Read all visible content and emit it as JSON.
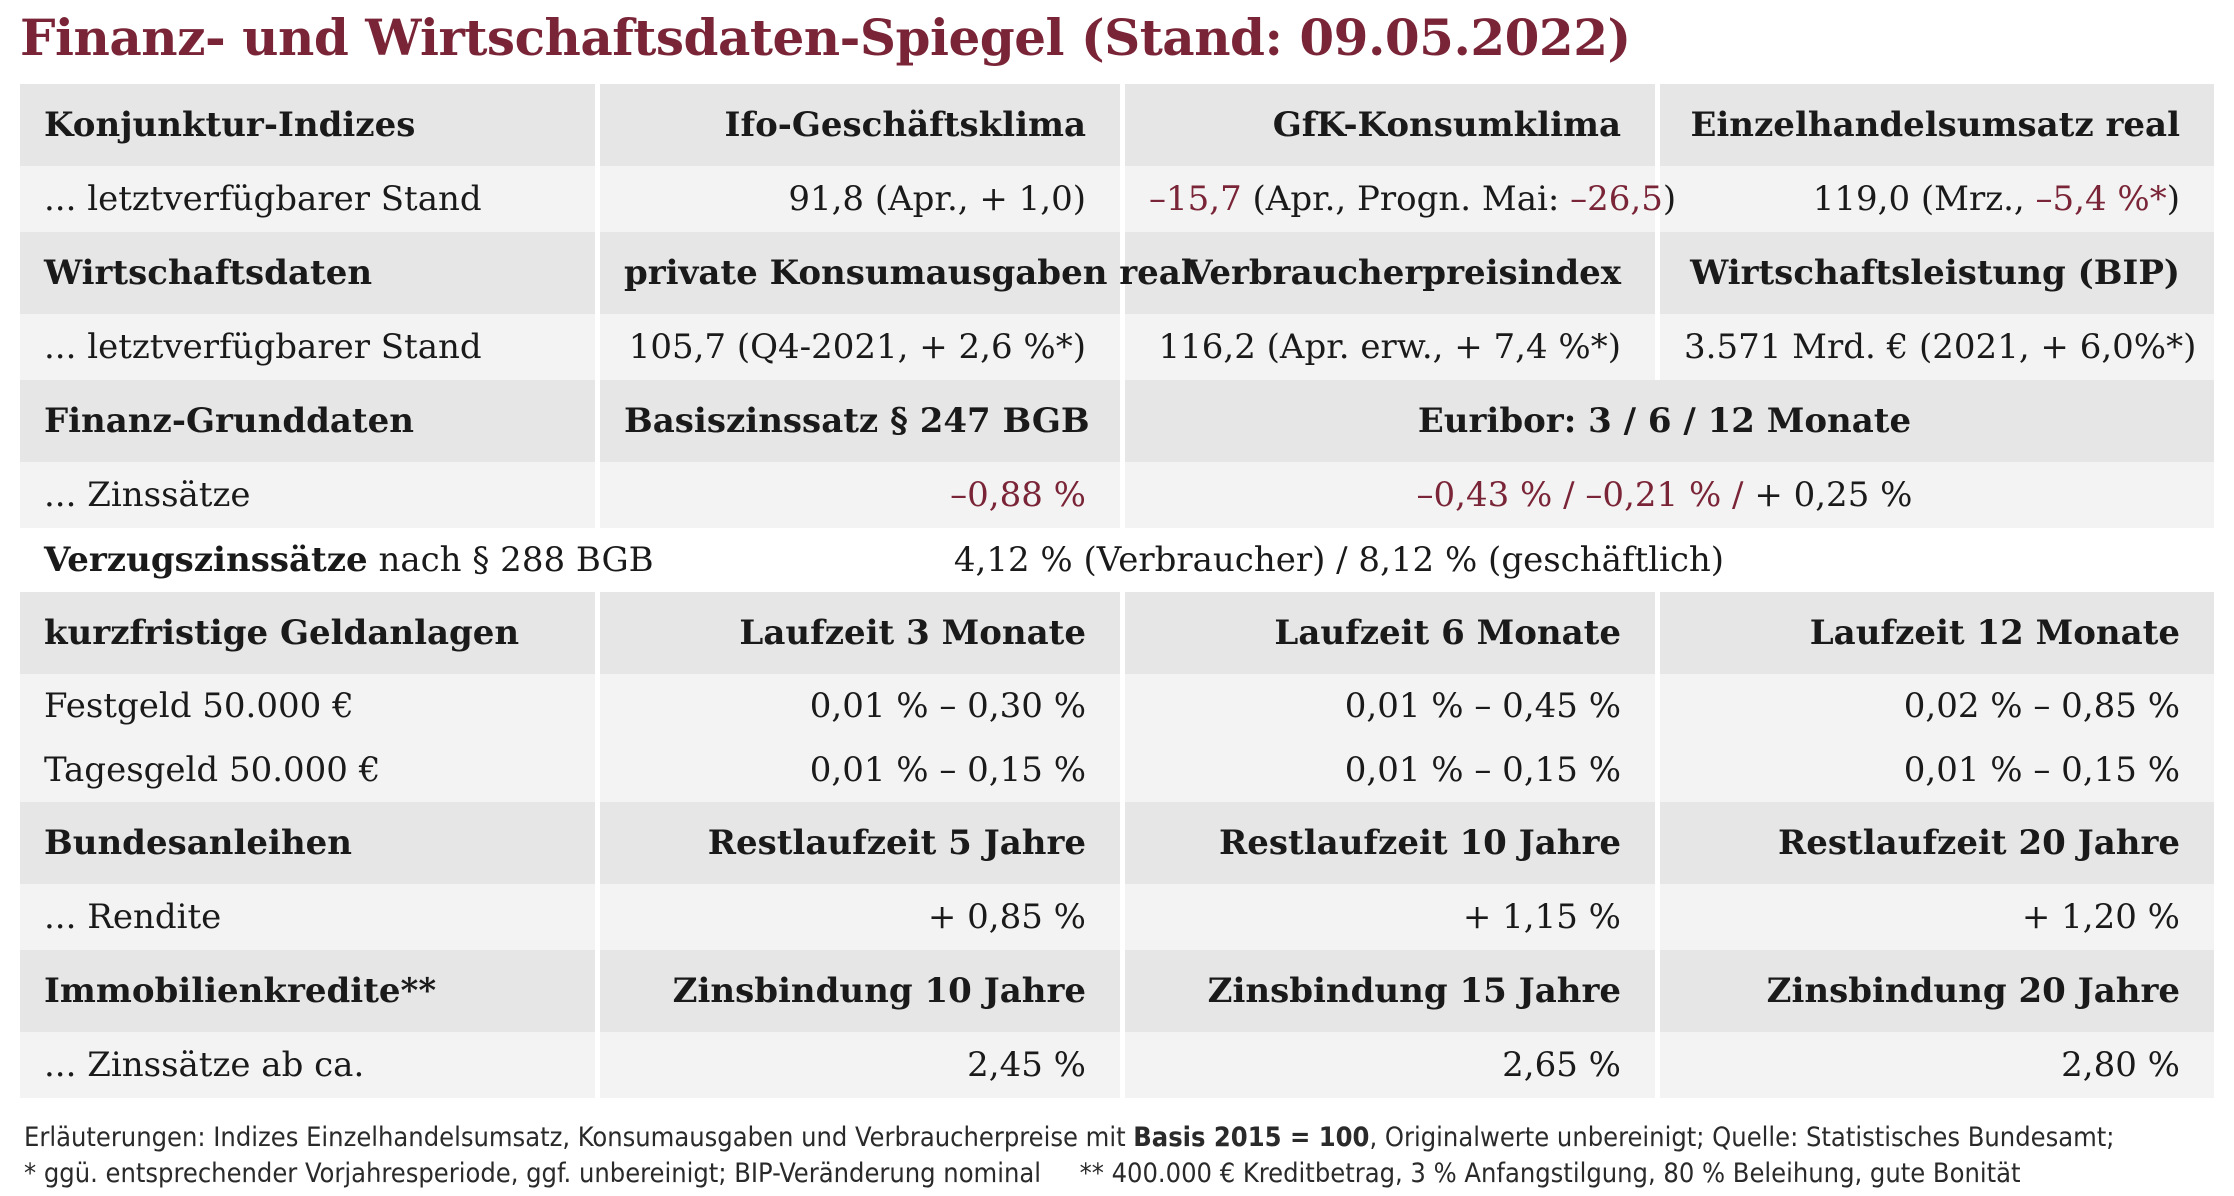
{
  "title": "Finanz- und Wirtschaftsdaten-Spiegel (Stand: 09.05.2022)",
  "rows": {
    "konjunktur_header": [
      "Konjunktur-Indizes",
      "Ifo-Geschäftsklima",
      "GfK-Konsumklima",
      "Einzelhandelsumsatz real"
    ],
    "konjunktur_values": {
      "label": "... letztverfügbarer Stand",
      "ifo": "91,8 (Apr., + 1,0)",
      "gfk_neg": "–15,7",
      "gfk_mid": " (Apr., Progn. Mai: ",
      "gfk_neg2": "–26,5",
      "gfk_end": ")",
      "ehu_start": "119,0 (Mrz., ",
      "ehu_neg": "–5,4 %*",
      "ehu_end": ")"
    },
    "wirtschaft_header": [
      "Wirtschaftsdaten",
      "private Konsumausgaben real",
      "Verbraucherpreisindex",
      "Wirtschaftsleistung (BIP)"
    ],
    "wirtschaft_values": [
      "... letztverfügbarer Stand",
      "105,7 (Q4-2021, + 2,6 %*)",
      "116,2 (Apr. erw., + 7,4 %*)",
      "3.571 Mrd. € (2021, + 6,0%*)"
    ],
    "finanz_header": [
      "Finanz-Grunddaten",
      "Basiszinssatz § 247 BGB",
      "Euribor: 3 / 6 / 12 Monate"
    ],
    "zins_values": {
      "label": "... Zinssätze",
      "basis": "–0,88 %",
      "euribor_neg": "–0,43 % / –0,21 % /",
      "euribor_pos": " + 0,25 %"
    },
    "verzug": {
      "label_bold": "Verzugszinssätze",
      "label_rest": " nach § 288 BGB",
      "value": "4,12 % (Verbraucher) / 8,12 % (geschäftlich)"
    },
    "geld_header": [
      "kurzfristige Geldanlagen",
      "Laufzeit 3 Monate",
      "Laufzeit 6 Monate",
      "Laufzeit 12 Monate"
    ],
    "festgeld": [
      "Festgeld 50.000 €",
      "0,01 % – 0,30 %",
      "0,01 % – 0,45 %",
      "0,02 % – 0,85 %"
    ],
    "tagesgeld": [
      "Tagesgeld 50.000 €",
      "0,01 % – 0,15 %",
      "0,01 % – 0,15 %",
      "0,01 % – 0,15 %"
    ],
    "anleihen_header": [
      "Bundesanleihen",
      "Restlaufzeit 5 Jahre",
      "Restlaufzeit 10 Jahre",
      "Restlaufzeit 20 Jahre"
    ],
    "rendite": [
      "... Rendite",
      "+ 0,85 %",
      "+ 1,15 %",
      "+ 1,20 %"
    ],
    "immo_header": [
      "Immobilienkredite**",
      "Zinsbindung 10 Jahre",
      "Zinsbindung 15 Jahre",
      "Zinsbindung 20 Jahre"
    ],
    "immo_values": [
      "... Zinssätze ab ca.",
      "2,45 %",
      "2,65 %",
      "2,80 %"
    ]
  },
  "notes": {
    "line1_start": "Erläuterungen: Indizes Einzelhandelsumsatz, Konsumausgaben und Verbraucherpreise mit ",
    "line1_bold": "Basis 2015 = 100",
    "line1_end": ", Originalwerte unbereinigt; Quelle: Statistisches Bundesamt;",
    "line2": "* ggü. entsprechender Vorjahresperiode, ggf. unbereinigt; BIP-Veränderung nominal     ** 400.000 € Kreditbetrag, 3 % Anfangstilgung, 80 % Beleihung, gute Bonität"
  },
  "colors": {
    "accent": "#7a2537",
    "header_bg": "#e6e6e6",
    "value_bg": "#f3f3f3"
  }
}
